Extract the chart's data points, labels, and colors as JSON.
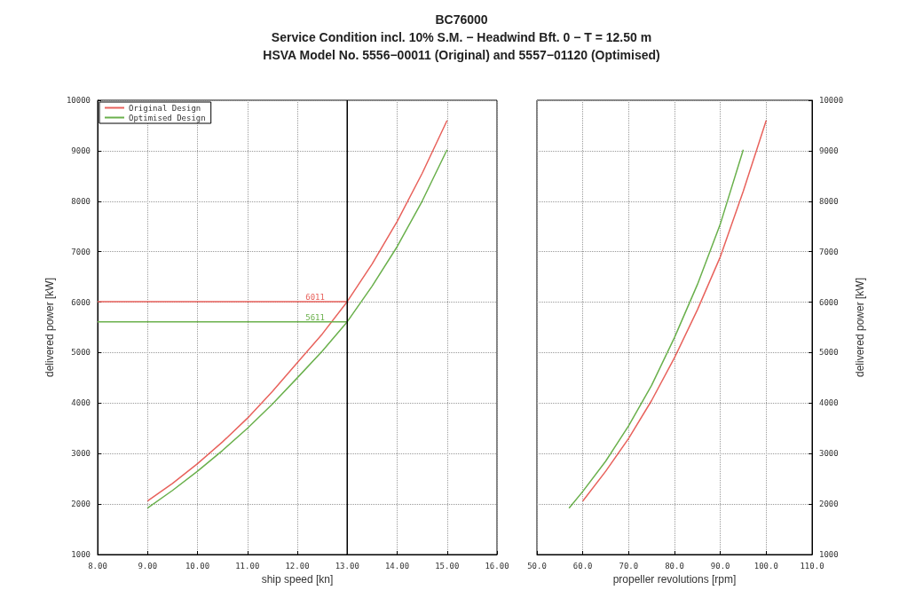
{
  "chart_data": [
    {
      "type": "line",
      "title": "BC76000",
      "subtitle": "Service Condition incl. 10% S.M. − Headwind Bft. 0 − T = 12.50 m\nHSVA Model No. 5556−00011 (Original) and 5557−01120 (Optimised)",
      "xlabel": "ship speed [kn]",
      "ylabel": "delivered power [kW]",
      "series": [
        {
          "name": "Original Design",
          "color": "#e8625c",
          "x": [
            9,
            9.5,
            10,
            10.5,
            11,
            11.5,
            12,
            12.5,
            13,
            13.5,
            14,
            14.5,
            15
          ],
          "values": [
            2060,
            2410,
            2800,
            3230,
            3700,
            4230,
            4800,
            5370,
            6011,
            6760,
            7600,
            8550,
            9600
          ]
        },
        {
          "name": "Optimised Design",
          "color": "#6ab04c",
          "x": [
            9,
            9.5,
            10,
            10.5,
            11,
            11.5,
            12,
            12.5,
            13,
            13.5,
            14,
            14.5,
            15
          ],
          "values": [
            1920,
            2270,
            2650,
            3060,
            3500,
            3980,
            4500,
            5030,
            5611,
            6320,
            7100,
            8000,
            9020
          ]
        }
      ],
      "ref_lines": [
        {
          "axis": "y",
          "value": 6011,
          "label": "6011",
          "color": "#e8625c"
        },
        {
          "axis": "y",
          "value": 5611,
          "label": "5611",
          "color": "#6ab04c"
        },
        {
          "axis": "x",
          "value": 13,
          "color": "#000000"
        }
      ],
      "xlim": [
        8,
        16
      ],
      "xticks": [
        {
          "value": 8,
          "label": "8.00"
        },
        {
          "value": 9,
          "label": "9.00"
        },
        {
          "value": 10,
          "label": "10.00"
        },
        {
          "value": 11,
          "label": "11.00"
        },
        {
          "value": 12,
          "label": "12.00"
        },
        {
          "value": 13,
          "label": "13.00"
        },
        {
          "value": 14,
          "label": "14.00"
        },
        {
          "value": 15,
          "label": "15.00"
        },
        {
          "value": 16,
          "label": "16.00"
        }
      ],
      "ylim": [
        1000,
        10000
      ],
      "yticks": [
        1000,
        2000,
        3000,
        4000,
        5000,
        6000,
        7000,
        8000,
        9000,
        10000
      ],
      "grid": true,
      "legend": "top left",
      "marker": "none",
      "line_style": "solid"
    },
    {
      "type": "line",
      "xlabel": "propeller revolutions [rpm]",
      "y2label": "delivered power [kW]",
      "series": [
        {
          "color": "#e8625c",
          "axis": "y2",
          "x": [
            60,
            65,
            70,
            75,
            80,
            85,
            90,
            95,
            100
          ],
          "values": [
            2060,
            2650,
            3300,
            4050,
            4900,
            5850,
            6900,
            8200,
            9600
          ]
        },
        {
          "color": "#6ab04c",
          "axis": "y2",
          "x": [
            57,
            60,
            65,
            70,
            75,
            80,
            85,
            90,
            95
          ],
          "values": [
            1920,
            2250,
            2850,
            3550,
            4350,
            5300,
            6350,
            7550,
            9020
          ]
        }
      ],
      "xlim": [
        50,
        110
      ],
      "xticks": [
        {
          "value": 50,
          "label": "50.0"
        },
        {
          "value": 60,
          "label": "60.0"
        },
        {
          "value": 70,
          "label": "70.0"
        },
        {
          "value": 80,
          "label": "80.0"
        },
        {
          "value": 90,
          "label": "90.0"
        },
        {
          "value": 100,
          "label": "100.0"
        },
        {
          "value": 110,
          "label": "110.0"
        }
      ],
      "y2lim": [
        1000,
        10000
      ],
      "y2ticks": [
        1000,
        2000,
        3000,
        4000,
        5000,
        6000,
        7000,
        8000,
        9000,
        10000
      ],
      "grid": true,
      "marker": "none",
      "line_style": "solid"
    }
  ]
}
